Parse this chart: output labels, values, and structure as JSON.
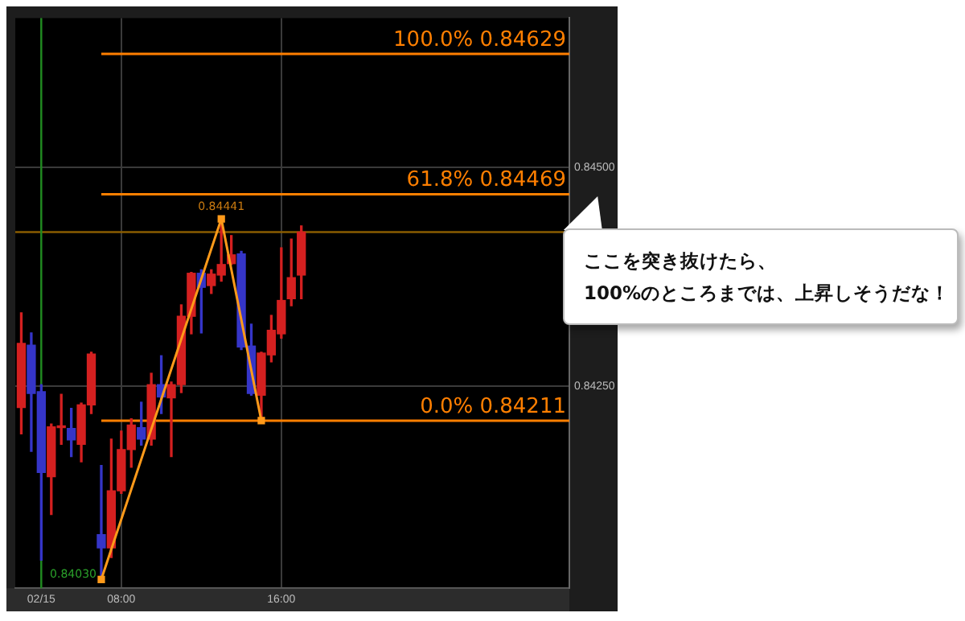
{
  "chart_data": {
    "type": "candlestick",
    "x": [
      3,
      3.5,
      4,
      4.5,
      5,
      5.5,
      6,
      6.5,
      7,
      7.5,
      8,
      8.5,
      9,
      9.5,
      10,
      10.5,
      11,
      11.5,
      12,
      12.5,
      13,
      13.5,
      14,
      14.5,
      15,
      15.5,
      16,
      16.5,
      17
    ],
    "ohlc": [
      [
        0.84226,
        0.84334,
        0.84196,
        0.84299
      ],
      [
        0.84297,
        0.84311,
        0.84176,
        0.84242
      ],
      [
        0.84244,
        0.84252,
        0.84052,
        0.84152
      ],
      [
        0.84147,
        0.84207,
        0.84104,
        0.84204
      ],
      [
        0.84203,
        0.84241,
        0.84184,
        0.84205
      ],
      [
        0.84202,
        0.84225,
        0.8417,
        0.84189
      ],
      [
        0.84184,
        0.84231,
        0.84164,
        0.84229
      ],
      [
        0.84229,
        0.84289,
        0.84219,
        0.84287
      ],
      [
        0.84081,
        0.8416,
        0.8403,
        0.84066
      ],
      [
        0.84066,
        0.8419,
        0.84055,
        0.84131
      ],
      [
        0.84131,
        0.84199,
        0.84128,
        0.84178
      ],
      [
        0.84178,
        0.84213,
        0.84158,
        0.84206
      ],
      [
        0.84203,
        0.84232,
        0.84183,
        0.8419
      ],
      [
        0.8419,
        0.84265,
        0.84183,
        0.84252
      ],
      [
        0.84252,
        0.84285,
        0.84219,
        0.84238
      ],
      [
        0.84237,
        0.84255,
        0.8417,
        0.84252
      ],
      [
        0.84252,
        0.84343,
        0.84243,
        0.8433
      ],
      [
        0.8433,
        0.8438,
        0.8431,
        0.84379
      ],
      [
        0.84379,
        0.84383,
        0.84311,
        0.84363
      ],
      [
        0.84365,
        0.84383,
        0.84356,
        0.84378
      ],
      [
        0.84377,
        0.84441,
        0.8437,
        0.84389
      ],
      [
        0.8439,
        0.84422,
        0.84389,
        0.844
      ],
      [
        0.84401,
        0.84404,
        0.84292,
        0.84295
      ],
      [
        0.84296,
        0.84321,
        0.8424,
        0.84242
      ],
      [
        0.8424,
        0.84289,
        0.84211,
        0.84288
      ],
      [
        0.84286,
        0.84331,
        0.84278,
        0.84314
      ],
      [
        0.8431,
        0.84408,
        0.84305,
        0.84348
      ],
      [
        0.8435,
        0.84418,
        0.84342,
        0.84374
      ],
      [
        0.84377,
        0.84433,
        0.8435,
        0.84426
      ]
    ],
    "colors": [
      "#d42020",
      "#3535c8",
      "#3535c8",
      "#d42020",
      "#d42020",
      "#3535c8",
      "#d42020",
      "#d42020",
      "#3535c8",
      "#d42020",
      "#d42020",
      "#d42020",
      "#3535c8",
      "#d42020",
      "#3535c8",
      "#d42020",
      "#d42020",
      "#d42020",
      "#3535c8",
      "#d42020",
      "#d42020",
      "#d42020",
      "#3535c8",
      "#3535c8",
      "#d42020",
      "#d42020",
      "#d42020",
      "#d42020",
      "#d42020"
    ],
    "series": [
      {
        "type": "line",
        "x": [
          7,
          13,
          15
        ],
        "values": [
          0.8403,
          0.84441,
          0.84211
        ],
        "color": "#ff9a1a"
      }
    ],
    "marker": "square",
    "xlim": [
      2.7,
      30.4
    ],
    "xticks": [
      {
        "value": 4,
        "label": "02/15"
      },
      {
        "value": 8,
        "label": "08:00"
      },
      {
        "value": 16,
        "label": "16:00"
      }
    ],
    "ylim": [
      0.8402,
      0.8467
    ],
    "yticks": [
      {
        "value": 0.845,
        "label": "0.84500"
      },
      {
        "value": 0.8425,
        "label": "0.84250"
      }
    ],
    "grid": true,
    "ref_lines": [
      {
        "axis": "y",
        "value": 0.84629,
        "label": "100.0% 0.84629",
        "color": "#ff7f00"
      },
      {
        "axis": "y",
        "value": 0.84469,
        "label": "61.8% 0.84469",
        "color": "#ff7f00"
      },
      {
        "axis": "y",
        "value": 0.84211,
        "label": "0.0% 0.84211",
        "color": "#ff7f00"
      },
      {
        "axis": "y",
        "value": 0.84426,
        "color": "#8a5c00"
      },
      {
        "axis": "x",
        "value": 4,
        "color": "#1f8a1f"
      }
    ],
    "annotations": [
      {
        "text": "0.84441",
        "x": 13,
        "y": 0.84441
      },
      {
        "text": "0.84030",
        "x": 7,
        "y": 0.8403
      },
      "ここを突き抜けたら、\n100%のところまでは、上昇しそうだな！"
    ]
  }
}
